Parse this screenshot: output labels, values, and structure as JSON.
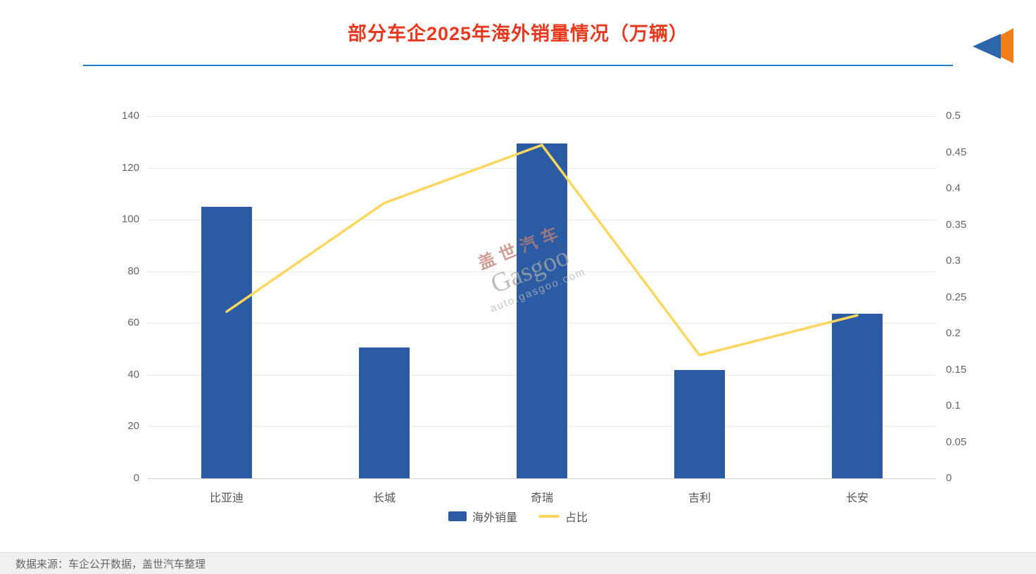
{
  "header": {
    "title": "部分车企2025年海外销量情况（万辆）",
    "accent_color": "#e8391f",
    "underline_color": "#1e7ec8"
  },
  "logo": {
    "name": "gasgoo-logo",
    "orange": "#f07f1a",
    "blue": "#2e66ab"
  },
  "watermark": {
    "line1": "盖世汽车",
    "line2": "Gasgoo",
    "line3": "auto.gasgoo.com"
  },
  "footer": {
    "source": "数据来源：车企公开数据，盖世汽车整理"
  },
  "chart_data": {
    "type": "bar+line",
    "title": "部分车企2025年海外销量情况（万辆）",
    "categories": [
      "比亚迪",
      "长城",
      "奇瑞",
      "吉利",
      "长安"
    ],
    "series": [
      {
        "name": "海外销量",
        "type": "bar",
        "axis": "left",
        "color": "#2b5ba3",
        "values": [
          105,
          50.5,
          129.5,
          42,
          63.5
        ]
      },
      {
        "name": "占比",
        "type": "line",
        "axis": "right",
        "color": "#fcd65e",
        "values": [
          0.23,
          0.38,
          0.46,
          0.17,
          0.225
        ]
      }
    ],
    "left_axis": {
      "min": 0,
      "max": 140,
      "step": 20
    },
    "right_axis": {
      "min": 0,
      "max": 0.5,
      "step": 0.05
    },
    "xlabel": "",
    "ylabel": "",
    "grid": true,
    "legend": [
      "海外销量",
      "占比"
    ],
    "legend_position": "bottom"
  }
}
